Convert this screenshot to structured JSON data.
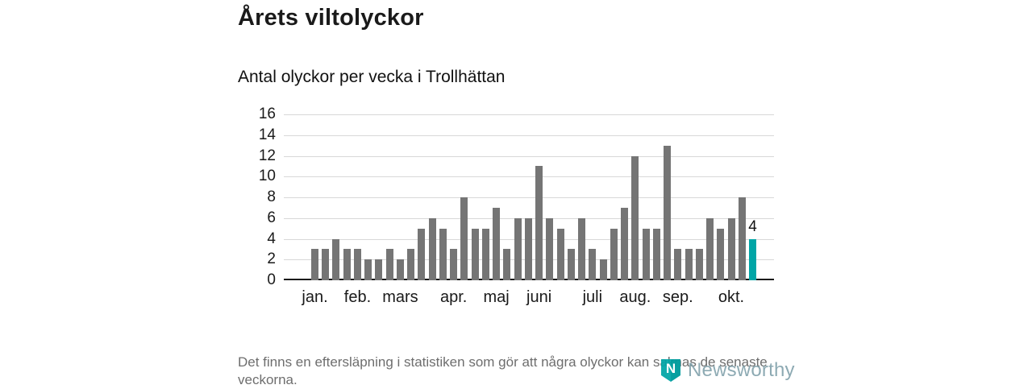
{
  "header": {
    "title": "Årets viltolyckor",
    "subtitle": "Antal olyckor per vecka i Trollhättan"
  },
  "chart_data": {
    "type": "bar",
    "title": "Årets viltolyckor",
    "subtitle": "Antal olyckor per vecka i Trollhättan",
    "x_unit": "vecka",
    "ylim": [
      0,
      16
    ],
    "yticks": [
      0,
      2,
      4,
      6,
      8,
      10,
      12,
      14,
      16
    ],
    "grid": true,
    "values": [
      3,
      3,
      4,
      3,
      3,
      2,
      2,
      3,
      2,
      3,
      5,
      6,
      5,
      3,
      8,
      5,
      5,
      7,
      3,
      6,
      6,
      11,
      6,
      5,
      3,
      6,
      3,
      2,
      5,
      7,
      12,
      5,
      5,
      13,
      3,
      3,
      3,
      6,
      5,
      6,
      8,
      4
    ],
    "highlight_index": 41,
    "highlight_value_label": "4",
    "bar_color": "#757575",
    "highlight_color": "#00A5A6",
    "month_labels": [
      {
        "label": "jan.",
        "week": 1
      },
      {
        "label": "feb.",
        "week": 5
      },
      {
        "label": "mars",
        "week": 9
      },
      {
        "label": "apr.",
        "week": 14
      },
      {
        "label": "maj",
        "week": 18
      },
      {
        "label": "juni",
        "week": 22
      },
      {
        "label": "juli",
        "week": 27
      },
      {
        "label": "aug.",
        "week": 31
      },
      {
        "label": "sep.",
        "week": 35
      },
      {
        "label": "okt.",
        "week": 40
      }
    ],
    "legend_position": "none"
  },
  "footer": {
    "note": "Det finns en eftersläpning i statistiken som gör att några olyckor kan saknas de senaste veckorna.",
    "brand": "Newsworthy"
  },
  "colors": {
    "bar": "#757575",
    "highlight": "#00A5A6",
    "grid": "#d8d8d8",
    "axis": "#1a1a1a",
    "footnote_text": "#6e6e6e",
    "brand_text": "#7d9ea8"
  }
}
